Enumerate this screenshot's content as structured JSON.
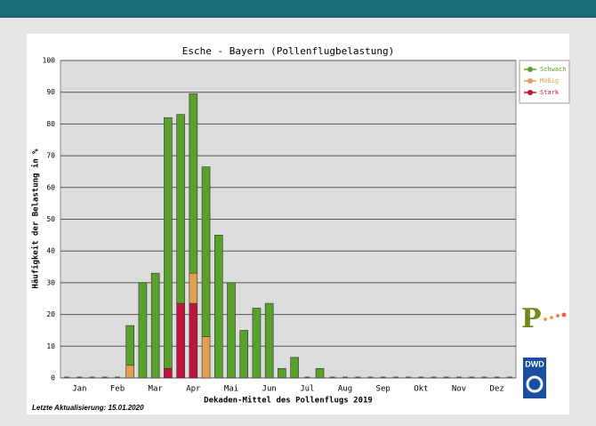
{
  "chart_data": {
    "type": "bar",
    "stacked": true,
    "title": "Esche - Bayern (Pollenflugbelastung)",
    "y_label": "Häufigkeit der Belastung in %",
    "x_label": "Dekaden-Mittel des Pollenflugs 2019",
    "footnote": "Letzte Aktualisierung: 15.01.2020",
    "categories": [
      null,
      "Jan",
      null,
      null,
      "Feb",
      null,
      null,
      "Mar",
      null,
      null,
      "Apr",
      null,
      null,
      "Mai",
      null,
      null,
      "Jun",
      null,
      null,
      "Jul",
      null,
      null,
      "Aug",
      null,
      null,
      "Sep",
      null,
      null,
      "Okt",
      null,
      null,
      "Nov",
      null,
      null,
      "Dez",
      null
    ],
    "series": [
      {
        "name": "Schwach",
        "color": "#5aa02c",
        "values": [
          0,
          0,
          0,
          0,
          0,
          12.5,
          30,
          33,
          79,
          59.5,
          56.5,
          53.5,
          45,
          30,
          15,
          22,
          23.5,
          3,
          6.5,
          0,
          3,
          0,
          0,
          0,
          0,
          0,
          0,
          0,
          0,
          0,
          0,
          0,
          0,
          0,
          0,
          0
        ]
      },
      {
        "name": "Mäßig",
        "color": "#e0a050",
        "values": [
          0,
          0,
          0,
          0,
          0,
          4,
          0,
          0,
          0,
          0,
          9.5,
          13,
          0,
          0,
          0,
          0,
          0,
          0,
          0,
          0,
          0,
          0,
          0,
          0,
          0,
          0,
          0,
          0,
          0,
          0,
          0,
          0,
          0,
          0,
          0,
          0
        ]
      },
      {
        "name": "Stark",
        "color": "#c0143c",
        "values": [
          0,
          0,
          0,
          0,
          0,
          0,
          0,
          0,
          3,
          23.5,
          23.5,
          0,
          0,
          0,
          0,
          0,
          0,
          0,
          0,
          0,
          0,
          0,
          0,
          0,
          0,
          0,
          0,
          0,
          0,
          0,
          0,
          0,
          0,
          0,
          0,
          0
        ]
      }
    ],
    "ylim": [
      0,
      100
    ],
    "yticks": [
      0,
      10,
      20,
      30,
      40,
      50,
      60,
      70,
      80,
      90,
      100
    ],
    "grid": true,
    "legend": "top-right"
  },
  "logo": "DWD"
}
